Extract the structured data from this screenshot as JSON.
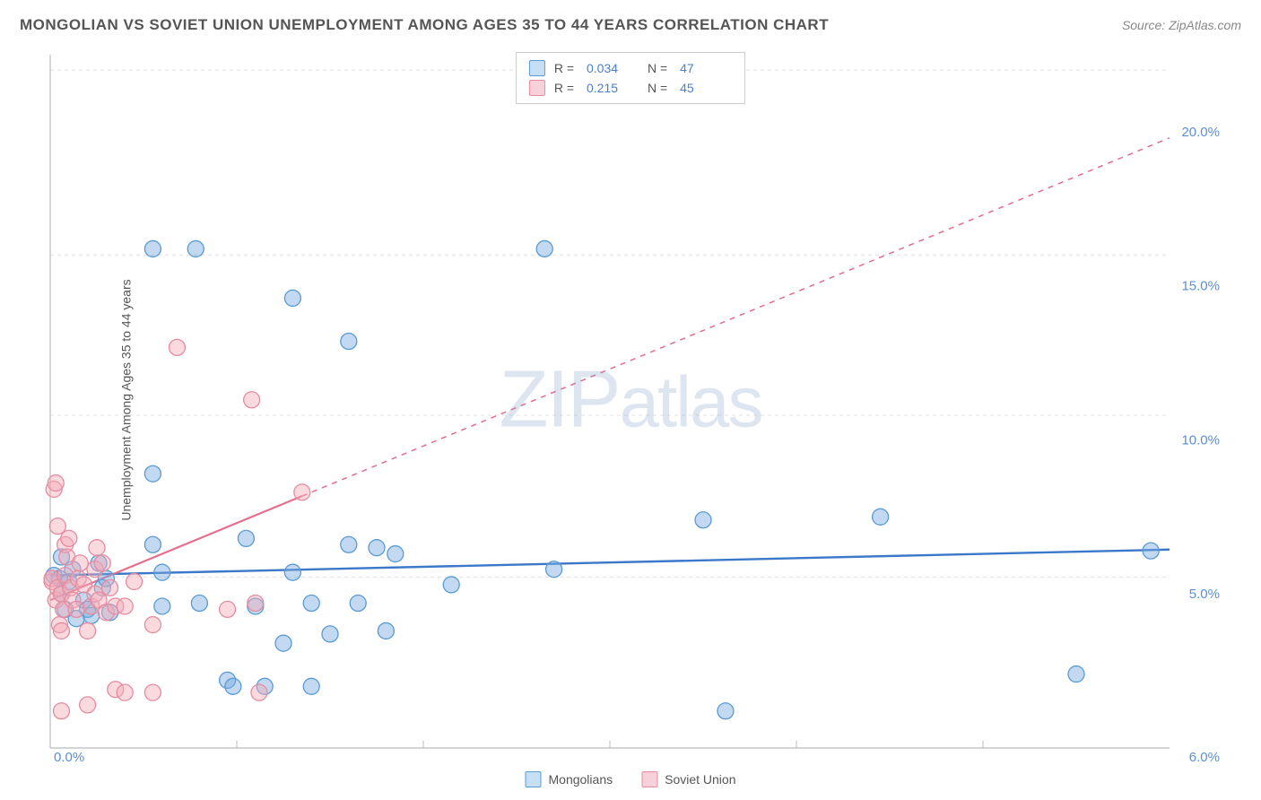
{
  "title": "MONGOLIAN VS SOVIET UNION UNEMPLOYMENT AMONG AGES 35 TO 44 YEARS CORRELATION CHART",
  "source": "Source: ZipAtlas.com",
  "watermark": "ZIPatlas",
  "y_axis_label": "Unemployment Among Ages 35 to 44 years",
  "chart": {
    "type": "scatter",
    "background_color": "#ffffff",
    "grid_color": "#e0e0e0",
    "axis_text_color": "#5a8fd4",
    "text_color": "#555555",
    "x": {
      "min": 0,
      "max": 6.0,
      "ticks": [
        0.0,
        6.0
      ],
      "tick_format": "{v}%",
      "minor_ticks": [
        1,
        2,
        3,
        4,
        5
      ]
    },
    "y": {
      "min": 0,
      "max": 22.5,
      "ticks": [
        5.0,
        10.0,
        15.0,
        20.0
      ],
      "tick_format": "{v}%",
      "grid_values": [
        5.55,
        10.8,
        16.0,
        22.0
      ]
    },
    "series": [
      {
        "name": "Mongolians",
        "marker_color_fill": "rgba(120,170,225,0.45)",
        "marker_color_stroke": "#5a9bd4",
        "marker_radius": 9,
        "marker_shape": "circle",
        "trend": {
          "slope": 0.14,
          "intercept": 5.6,
          "color": "#3b78c9",
          "width": 2.4,
          "solid_until_x": 6.0,
          "dash": "none"
        },
        "legend_fill": "#c7dff5",
        "legend_stroke": "#5a9bd4",
        "stats": {
          "R": "0.034",
          "N": "47"
        },
        "points": [
          [
            0.02,
            5.6
          ],
          [
            0.05,
            5.5
          ],
          [
            0.06,
            5.0
          ],
          [
            0.06,
            6.2
          ],
          [
            0.08,
            4.5
          ],
          [
            0.1,
            5.4
          ],
          [
            0.12,
            5.8
          ],
          [
            0.14,
            4.2
          ],
          [
            0.18,
            4.8
          ],
          [
            0.2,
            4.5
          ],
          [
            0.22,
            4.3
          ],
          [
            0.26,
            6.0
          ],
          [
            0.28,
            5.2
          ],
          [
            0.3,
            5.5
          ],
          [
            0.32,
            4.4
          ],
          [
            0.55,
            16.2
          ],
          [
            0.78,
            16.2
          ],
          [
            0.55,
            8.9
          ],
          [
            0.55,
            6.6
          ],
          [
            0.6,
            5.7
          ],
          [
            0.6,
            4.6
          ],
          [
            0.8,
            4.7
          ],
          [
            0.95,
            2.2
          ],
          [
            0.98,
            2.0
          ],
          [
            1.05,
            6.8
          ],
          [
            1.1,
            4.6
          ],
          [
            1.15,
            2.0
          ],
          [
            1.25,
            3.4
          ],
          [
            1.3,
            5.7
          ],
          [
            1.3,
            14.6
          ],
          [
            1.4,
            2.0
          ],
          [
            1.4,
            4.7
          ],
          [
            1.5,
            3.7
          ],
          [
            1.6,
            6.6
          ],
          [
            1.6,
            13.2
          ],
          [
            1.65,
            4.7
          ],
          [
            1.75,
            6.5
          ],
          [
            1.8,
            3.8
          ],
          [
            1.85,
            6.3
          ],
          [
            2.15,
            5.3
          ],
          [
            2.65,
            16.2
          ],
          [
            2.7,
            5.8
          ],
          [
            3.5,
            7.4
          ],
          [
            3.62,
            1.2
          ],
          [
            4.45,
            7.5
          ],
          [
            5.5,
            2.4
          ],
          [
            5.9,
            6.4
          ]
        ]
      },
      {
        "name": "Soviet Union",
        "marker_color_fill": "rgba(245,170,185,0.45)",
        "marker_color_stroke": "#e58ca0",
        "marker_radius": 9,
        "marker_shape": "circle",
        "trend": {
          "slope": 2.5,
          "intercept": 4.8,
          "color": "#e56f8f",
          "width": 2.2,
          "solid_until_x": 1.35,
          "dash": "6 6"
        },
        "legend_fill": "#f7d1da",
        "legend_stroke": "#e58ca0",
        "stats": {
          "R": "0.215",
          "N": "45"
        },
        "points": [
          [
            0.01,
            5.4
          ],
          [
            0.01,
            5.5
          ],
          [
            0.02,
            8.4
          ],
          [
            0.03,
            8.6
          ],
          [
            0.03,
            4.8
          ],
          [
            0.04,
            5.2
          ],
          [
            0.04,
            7.2
          ],
          [
            0.05,
            4.0
          ],
          [
            0.06,
            3.8
          ],
          [
            0.06,
            5.0
          ],
          [
            0.07,
            4.5
          ],
          [
            0.08,
            6.6
          ],
          [
            0.08,
            5.6
          ],
          [
            0.09,
            6.2
          ],
          [
            0.1,
            6.8
          ],
          [
            0.11,
            5.2
          ],
          [
            0.12,
            4.8
          ],
          [
            0.14,
            4.5
          ],
          [
            0.15,
            5.5
          ],
          [
            0.16,
            6.0
          ],
          [
            0.18,
            5.3
          ],
          [
            0.2,
            1.4
          ],
          [
            0.22,
            4.6
          ],
          [
            0.24,
            5.0
          ],
          [
            0.24,
            5.8
          ],
          [
            0.25,
            6.5
          ],
          [
            0.26,
            4.8
          ],
          [
            0.28,
            6.0
          ],
          [
            0.3,
            4.4
          ],
          [
            0.32,
            5.2
          ],
          [
            0.35,
            4.6
          ],
          [
            0.35,
            1.9
          ],
          [
            0.4,
            4.6
          ],
          [
            0.4,
            1.8
          ],
          [
            0.45,
            5.4
          ],
          [
            0.2,
            3.8
          ],
          [
            0.55,
            4.0
          ],
          [
            0.68,
            13.0
          ],
          [
            0.55,
            1.8
          ],
          [
            0.95,
            4.5
          ],
          [
            1.08,
            11.3
          ],
          [
            1.1,
            4.7
          ],
          [
            1.12,
            1.8
          ],
          [
            1.35,
            8.3
          ],
          [
            0.06,
            1.2
          ]
        ]
      }
    ]
  },
  "bottom_legend": [
    {
      "label": "Mongolians",
      "fill": "#c7dff5",
      "stroke": "#5a9bd4"
    },
    {
      "label": "Soviet Union",
      "fill": "#f7d1da",
      "stroke": "#e58ca0"
    }
  ]
}
